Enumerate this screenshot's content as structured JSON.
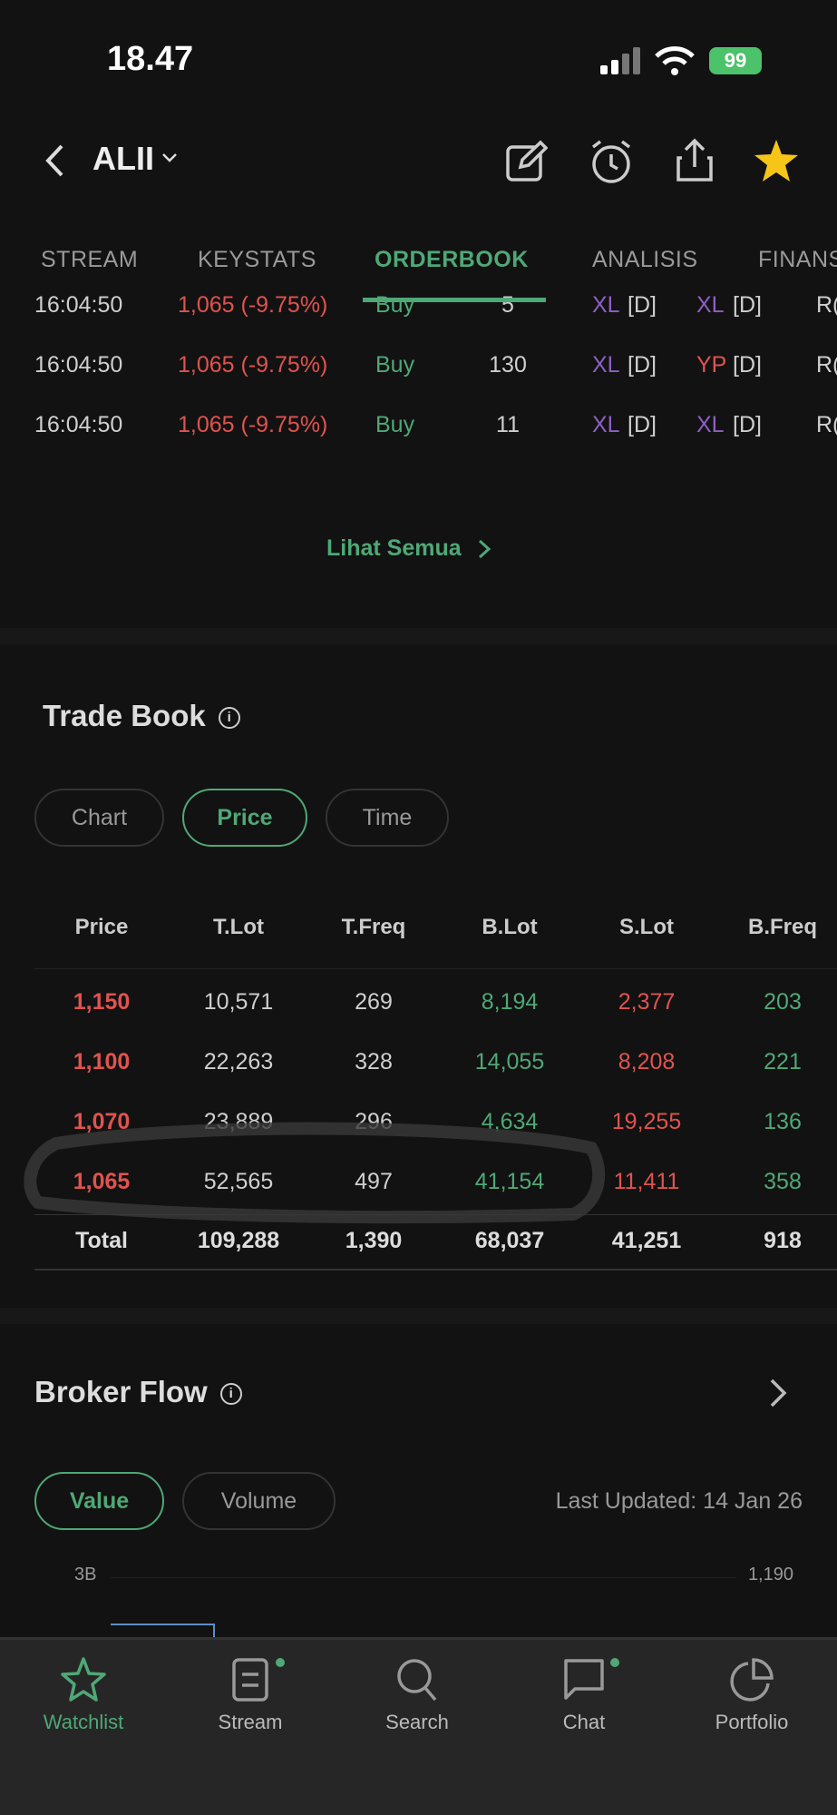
{
  "status": {
    "time": "18.47",
    "battery": "99"
  },
  "header": {
    "symbol": "ALII"
  },
  "tabs": [
    {
      "label": "STREAM"
    },
    {
      "label": "KEYSTATS"
    },
    {
      "label": "ORDERBOOK",
      "active": true
    },
    {
      "label": "ANALISIS"
    },
    {
      "label": "FINANS"
    }
  ],
  "stream_rows": [
    {
      "time": "16:04:50",
      "price": "1,065 (-9.75%)",
      "action": "Buy",
      "lot": "5",
      "buyer": "XL",
      "buyer_type": "[D]",
      "seller": "XL",
      "seller_type": "[D]",
      "extra": "R("
    },
    {
      "time": "16:04:50",
      "price": "1,065 (-9.75%)",
      "action": "Buy",
      "lot": "130",
      "buyer": "XL",
      "buyer_type": "[D]",
      "seller": "YP",
      "seller_type": "[D]",
      "extra": "R("
    },
    {
      "time": "16:04:50",
      "price": "1,065 (-9.75%)",
      "action": "Buy",
      "lot": "11",
      "buyer": "XL",
      "buyer_type": "[D]",
      "seller": "XL",
      "seller_type": "[D]",
      "extra": "R("
    }
  ],
  "see_all": "Lihat Semua",
  "trade_book": {
    "title": "Trade Book",
    "filters": [
      "Chart",
      "Price",
      "Time"
    ],
    "active_filter": "Price",
    "columns": [
      "Price",
      "T.Lot",
      "T.Freq",
      "B.Lot",
      "S.Lot",
      "B.Freq"
    ],
    "rows": [
      [
        "1,150",
        "10,571",
        "269",
        "8,194",
        "2,377",
        "203"
      ],
      [
        "1,100",
        "22,263",
        "328",
        "14,055",
        "8,208",
        "221"
      ],
      [
        "1,070",
        "23,889",
        "296",
        "4,634",
        "19,255",
        "136"
      ],
      [
        "1,065",
        "52,565",
        "497",
        "41,154",
        "11,411",
        "358"
      ]
    ],
    "total": [
      "Total",
      "109,288",
      "1,390",
      "68,037",
      "41,251",
      "918"
    ]
  },
  "broker_flow": {
    "title": "Broker Flow",
    "filters": [
      "Value",
      "Volume"
    ],
    "active_filter": "Value",
    "last_updated": "Last Updated: 14 Jan 26",
    "y_left_top": "3B",
    "y_right_top": "1,190"
  },
  "nav": [
    {
      "label": "Watchlist",
      "active": true
    },
    {
      "label": "Stream",
      "badge": true
    },
    {
      "label": "Search"
    },
    {
      "label": "Chat",
      "badge": true
    },
    {
      "label": "Portfolio"
    }
  ],
  "colors": {
    "accent": "#4fa876",
    "down": "#e0534f",
    "broker_foreign": "#8e5fc4"
  }
}
